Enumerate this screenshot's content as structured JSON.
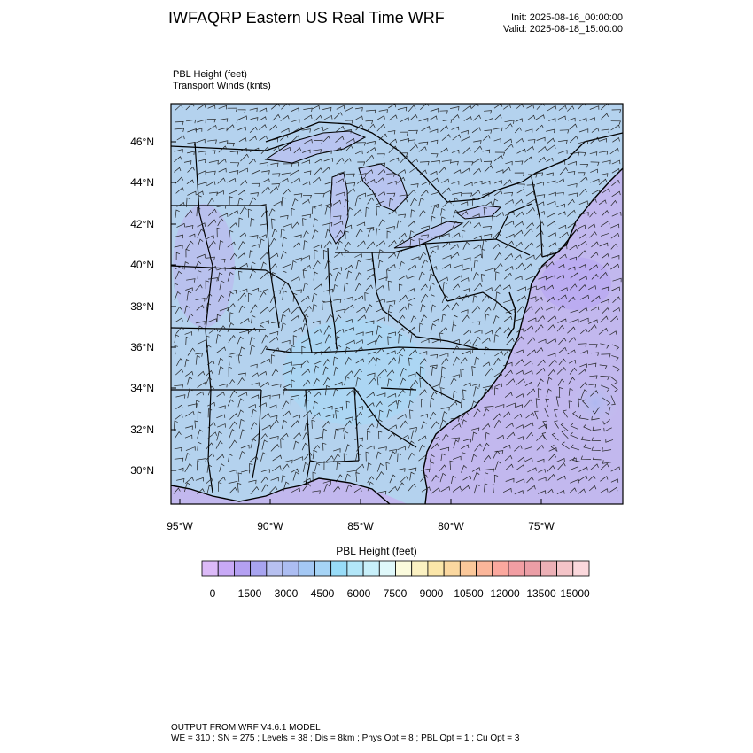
{
  "header": {
    "title": "IWFAQRP Eastern US Real Time WRF",
    "init": "Init: 2025-08-16_00:00:00",
    "valid": "Valid: 2025-08-18_15:00:00"
  },
  "fields": {
    "primary": "PBL Height   (feet)",
    "secondary": "Transport Winds   (knts)"
  },
  "map": {
    "lat_labels": [
      "46°N",
      "44°N",
      "42°N",
      "40°N",
      "38°N",
      "36°N",
      "34°N",
      "32°N",
      "30°N"
    ],
    "lon_labels": [
      "95°W",
      "90°W",
      "85°W",
      "80°W",
      "75°W"
    ],
    "land_color": "#b4d2ee",
    "ocean_color": "#c2b8ee",
    "border_color": "#000000"
  },
  "colorbar": {
    "title": "PBL Height  (feet)",
    "tick_labels": [
      "0",
      "1500",
      "3000",
      "4500",
      "6000",
      "7500",
      "9000",
      "10500",
      "12000",
      "13500",
      "15000"
    ],
    "colors": [
      "#dcbaf8",
      "#c8a9f6",
      "#b4a0f2",
      "#a8a4f0",
      "#b7c0f0",
      "#acbdf2",
      "#a4c8f4",
      "#a6d4f6",
      "#98dcf8",
      "#b2e6f8",
      "#c8f0fa",
      "#dff8fa",
      "#fbfbdd",
      "#fbf1c2",
      "#fbe6a9",
      "#fbd8a0",
      "#fbc89a",
      "#fbb69a",
      "#fba89e",
      "#f29ea3",
      "#eb9ea6",
      "#ecb0b6",
      "#f4c4c8",
      "#fbd8dc"
    ]
  },
  "footer": {
    "line1": "OUTPUT FROM WRF V4.6.1 MODEL",
    "line2": "WE = 310 ; SN = 275 ; Levels = 38 ; Dis = 8km ; Phys Opt = 8 ; PBL Opt = 1 ; Cu Opt = 3"
  }
}
